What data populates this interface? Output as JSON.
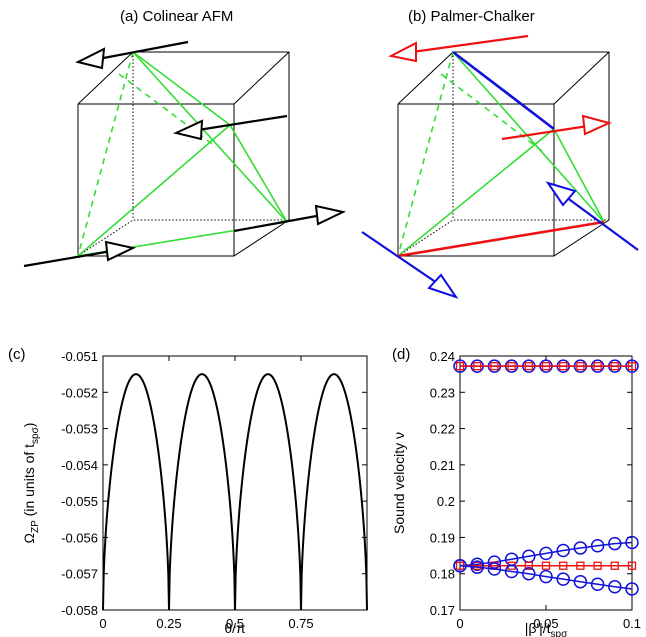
{
  "panels": {
    "a": {
      "title": "(a) Colinear AFM"
    },
    "b": {
      "title": "(b) Palmer-Chalker"
    },
    "c": {
      "label": "(c)"
    },
    "d": {
      "label": "(d)"
    }
  },
  "colors": {
    "black": "#000000",
    "green": "#33dd33",
    "red": "#ee1111",
    "blue": "#1111dd"
  },
  "chart_data": [
    {
      "panel": "c",
      "type": "line",
      "ylabel_main": "Ω",
      "ylabel_sub": "ZP",
      "ylabel_rest": " (in units of t",
      "ylabel_rest_sub": "spσ",
      "ylabel_close": ")",
      "xlabel": "θ/π",
      "xlim": [
        0,
        1
      ],
      "ylim": [
        -0.058,
        -0.051
      ],
      "xticks": [
        "0",
        "0.25",
        "0.5",
        "0.75"
      ],
      "xtick_values": [
        0,
        0.25,
        0.5,
        0.75
      ],
      "yticks": [
        "-0.058",
        "-0.057",
        "-0.056",
        "-0.055",
        "-0.054",
        "-0.053",
        "-0.052",
        "-0.051"
      ],
      "ytick_values": [
        -0.058,
        -0.057,
        -0.056,
        -0.055,
        -0.054,
        -0.053,
        -0.052,
        -0.051
      ],
      "series": [
        {
          "color": "#000000",
          "x": [
            0,
            0.02,
            0.05,
            0.08,
            0.125,
            0.17,
            0.2,
            0.23,
            0.25,
            0.27,
            0.3,
            0.33,
            0.375,
            0.42,
            0.45,
            0.48,
            0.5,
            0.52,
            0.55,
            0.58,
            0.625,
            0.67,
            0.7,
            0.73,
            0.75,
            0.77,
            0.8,
            0.83,
            0.875,
            0.92,
            0.95,
            0.98,
            1.0
          ],
          "y": [
            -0.058,
            -0.0555,
            -0.0533,
            -0.0522,
            -0.0515,
            -0.0522,
            -0.0533,
            -0.0555,
            -0.058,
            -0.0555,
            -0.0533,
            -0.0522,
            -0.0515,
            -0.0522,
            -0.0533,
            -0.0555,
            -0.058,
            -0.0555,
            -0.0533,
            -0.0522,
            -0.0515,
            -0.0522,
            -0.0533,
            -0.0555,
            -0.058,
            -0.0555,
            -0.0533,
            -0.0522,
            -0.0515,
            -0.0522,
            -0.0533,
            -0.0555,
            -0.058
          ]
        }
      ]
    },
    {
      "panel": "d",
      "type": "line",
      "ylabel": "Sound velocity ν",
      "xlabel_main": "|β'|/t",
      "xlabel_sub": "spσ",
      "xlim": [
        0,
        0.1
      ],
      "ylim": [
        0.17,
        0.24
      ],
      "xticks": [
        "0",
        "0.05",
        "0.1"
      ],
      "xtick_values": [
        0,
        0.05,
        0.1
      ],
      "yticks": [
        "0.17",
        "0.18",
        "0.19",
        "0.2",
        "0.21",
        "0.22",
        "0.23",
        "0.24"
      ],
      "ytick_values": [
        0.17,
        0.18,
        0.19,
        0.2,
        0.21,
        0.22,
        0.23,
        0.24
      ],
      "series": [
        {
          "color": "#1111dd",
          "marker": "circle",
          "x": [
            0,
            0.01,
            0.02,
            0.03,
            0.04,
            0.05,
            0.06,
            0.07,
            0.08,
            0.09,
            0.1
          ],
          "y": [
            0.2372,
            0.2372,
            0.2372,
            0.2372,
            0.2372,
            0.2372,
            0.2372,
            0.2372,
            0.2372,
            0.2372,
            0.2372
          ]
        },
        {
          "color": "#ee1111",
          "marker": "square",
          "x": [
            0,
            0.01,
            0.02,
            0.03,
            0.04,
            0.05,
            0.06,
            0.07,
            0.08,
            0.09,
            0.1
          ],
          "y": [
            0.2372,
            0.2372,
            0.2372,
            0.2372,
            0.2372,
            0.2372,
            0.2372,
            0.2372,
            0.2372,
            0.2372,
            0.2372
          ]
        },
        {
          "color": "#1111dd",
          "marker": "circle",
          "x": [
            0,
            0.01,
            0.02,
            0.03,
            0.04,
            0.05,
            0.06,
            0.07,
            0.08,
            0.09,
            0.1
          ],
          "y": [
            0.1822,
            0.1826,
            0.1832,
            0.184,
            0.1848,
            0.1856,
            0.1864,
            0.1871,
            0.1877,
            0.1883,
            0.1886
          ]
        },
        {
          "color": "#ee1111",
          "marker": "square",
          "x": [
            0,
            0.01,
            0.02,
            0.03,
            0.04,
            0.05,
            0.06,
            0.07,
            0.08,
            0.09,
            0.1
          ],
          "y": [
            0.1822,
            0.1822,
            0.1822,
            0.1822,
            0.1822,
            0.1822,
            0.1822,
            0.1822,
            0.1822,
            0.1822,
            0.1822
          ]
        },
        {
          "color": "#1111dd",
          "marker": "circle",
          "x": [
            0,
            0.01,
            0.02,
            0.03,
            0.04,
            0.05,
            0.06,
            0.07,
            0.08,
            0.09,
            0.1
          ],
          "y": [
            0.1822,
            0.1818,
            0.1813,
            0.1806,
            0.18,
            0.1792,
            0.1785,
            0.1778,
            0.1771,
            0.1764,
            0.1758
          ]
        }
      ]
    }
  ]
}
